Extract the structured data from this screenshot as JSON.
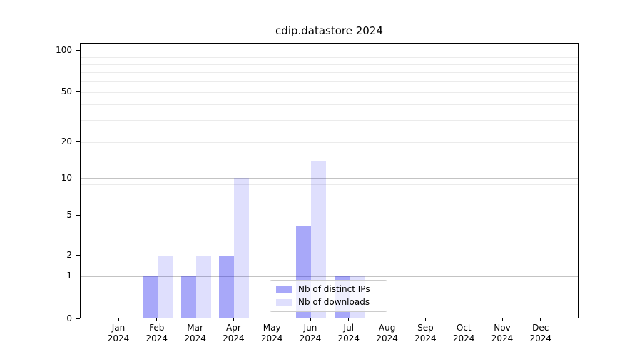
{
  "chart_data": {
    "type": "bar",
    "title": "cdip.datastore 2024",
    "x_ticks": [
      {
        "label": "Jan",
        "sublabel": "2024"
      },
      {
        "label": "Feb",
        "sublabel": "2024"
      },
      {
        "label": "Mar",
        "sublabel": "2024"
      },
      {
        "label": "Apr",
        "sublabel": "2024"
      },
      {
        "label": "May",
        "sublabel": "2024"
      },
      {
        "label": "Jun",
        "sublabel": "2024"
      },
      {
        "label": "Jul",
        "sublabel": "2024"
      },
      {
        "label": "Aug",
        "sublabel": "2024"
      },
      {
        "label": "Sep",
        "sublabel": "2024"
      },
      {
        "label": "Oct",
        "sublabel": "2024"
      },
      {
        "label": "Nov",
        "sublabel": "2024"
      },
      {
        "label": "Dec",
        "sublabel": "2024"
      }
    ],
    "y_axis": {
      "scale": "log-like with linear 0-1 segment",
      "range": [
        0,
        100
      ],
      "tick_labels": [
        "0",
        "1",
        "2",
        "5",
        "10",
        "20",
        "50",
        "100"
      ],
      "tick_values": [
        0,
        1,
        2,
        5,
        10,
        20,
        50,
        100
      ],
      "major_gridline_values": [
        1,
        10,
        100
      ],
      "minor_gridline_values": [
        2,
        3,
        4,
        5,
        6,
        7,
        8,
        9,
        20,
        30,
        40,
        50,
        60,
        70,
        80,
        90
      ]
    },
    "series": [
      {
        "name": "Nb of distinct IPs",
        "fill": "rgba(30,30,240,0.39)",
        "swatch_hex": "#a7a7f9",
        "values": [
          0,
          1,
          1,
          2,
          0,
          4,
          1,
          0,
          0,
          0,
          0,
          0
        ]
      },
      {
        "name": "Nb of downloads",
        "fill": "rgba(30,30,240,0.14)",
        "swatch_hex": "#e0e0fd",
        "values": [
          0,
          2,
          2,
          10,
          0,
          14,
          1,
          0,
          0,
          0,
          0,
          0
        ]
      }
    ],
    "legend": {
      "entries": [
        "Nb of distinct IPs",
        "Nb of downloads"
      ]
    },
    "colors": {
      "major_grid": "#c3c3c3",
      "minor_grid": "#ebebeb",
      "spine": "#000000",
      "background": "#ffffff",
      "text": "#000000"
    }
  }
}
